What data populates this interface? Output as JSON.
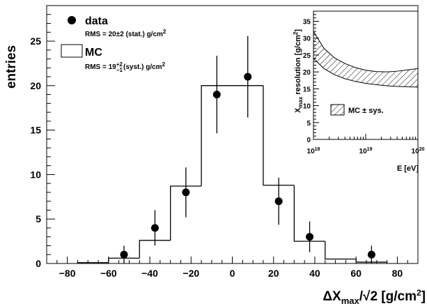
{
  "chart_data": [
    {
      "type": "histogram",
      "xlabel": "ΔX",
      "xlabel_sub": "max",
      "xlabel_tail": "/√2 [g/cm",
      "xlabel_sup": "2",
      "xlabel_end": "]",
      "ylabel": "entries",
      "xlim": [
        -90,
        90
      ],
      "ylim": [
        0,
        29
      ],
      "x_ticks": [
        -80,
        -60,
        -40,
        -20,
        0,
        20,
        40,
        60,
        80
      ],
      "x_tick_labels": [
        "−80",
        "−60",
        "−40",
        "−20",
        "0",
        "20",
        "40",
        "60",
        "80"
      ],
      "y_ticks": [
        0,
        5,
        10,
        15,
        20,
        25
      ],
      "y_tick_labels": [
        "0",
        "5",
        "10",
        "15",
        "20",
        "25"
      ],
      "mc_histogram": {
        "name": "MC",
        "bin_edges": [
          -75,
          -60,
          -45,
          -30,
          -15,
          0,
          15,
          30,
          45,
          60,
          75
        ],
        "values": [
          0.1,
          0.6,
          2.6,
          8.7,
          20.0,
          20.0,
          8.8,
          2.5,
          0.5,
          0.15
        ]
      },
      "data_points": {
        "name": "data",
        "x": [
          -52.5,
          -37.5,
          -22.5,
          -7.5,
          7.5,
          22.5,
          37.5,
          67.5
        ],
        "y": [
          1,
          4,
          8,
          19,
          21,
          7,
          3,
          1
        ],
        "err": [
          1.0,
          2.0,
          2.8,
          4.36,
          4.58,
          2.65,
          1.73,
          1.0
        ]
      },
      "legend": {
        "data_label": "data",
        "data_rms": "RMS = 20±2 (stat.) g/cm",
        "data_rms_sup": "2",
        "mc_label": "MC",
        "mc_rms_pre": "RMS = 19",
        "mc_rms_sup": "+2",
        "mc_rms_sub": "−1",
        "mc_rms_post": "(syst.) g/cm",
        "mc_rms_post_sup": "2"
      }
    },
    {
      "type": "area",
      "xlabel": "E [eV]",
      "ylabel_pre": "X",
      "ylabel_sub": "max",
      "ylabel_post": " resolution [g/cm",
      "ylabel_sup": "2",
      "ylabel_end": "]",
      "x_scale": "log",
      "xlim": [
        1e+18,
        1e+20
      ],
      "x_tick_base": "10",
      "x_tick_exponents": [
        "18",
        "19",
        "20"
      ],
      "ylim": [
        0,
        38
      ],
      "y_ticks": [
        0,
        5,
        10,
        15,
        20,
        25,
        30,
        35
      ],
      "y_tick_labels": [
        "0",
        "5",
        "10",
        "15",
        "20",
        "25",
        "30",
        "35"
      ],
      "band": {
        "log10E": [
          18.0,
          18.2,
          18.4,
          18.6,
          18.8,
          19.0,
          19.2,
          19.4,
          19.6,
          19.8,
          20.0
        ],
        "upper": [
          32.0,
          27.0,
          24.2,
          22.5,
          21.3,
          20.5,
          20.1,
          20.0,
          20.2,
          20.6,
          21.0
        ],
        "lower": [
          24.0,
          21.0,
          19.2,
          18.0,
          17.2,
          16.6,
          16.2,
          15.9,
          15.7,
          15.6,
          15.5
        ]
      },
      "legend": {
        "label": "MC ± sys."
      }
    }
  ]
}
